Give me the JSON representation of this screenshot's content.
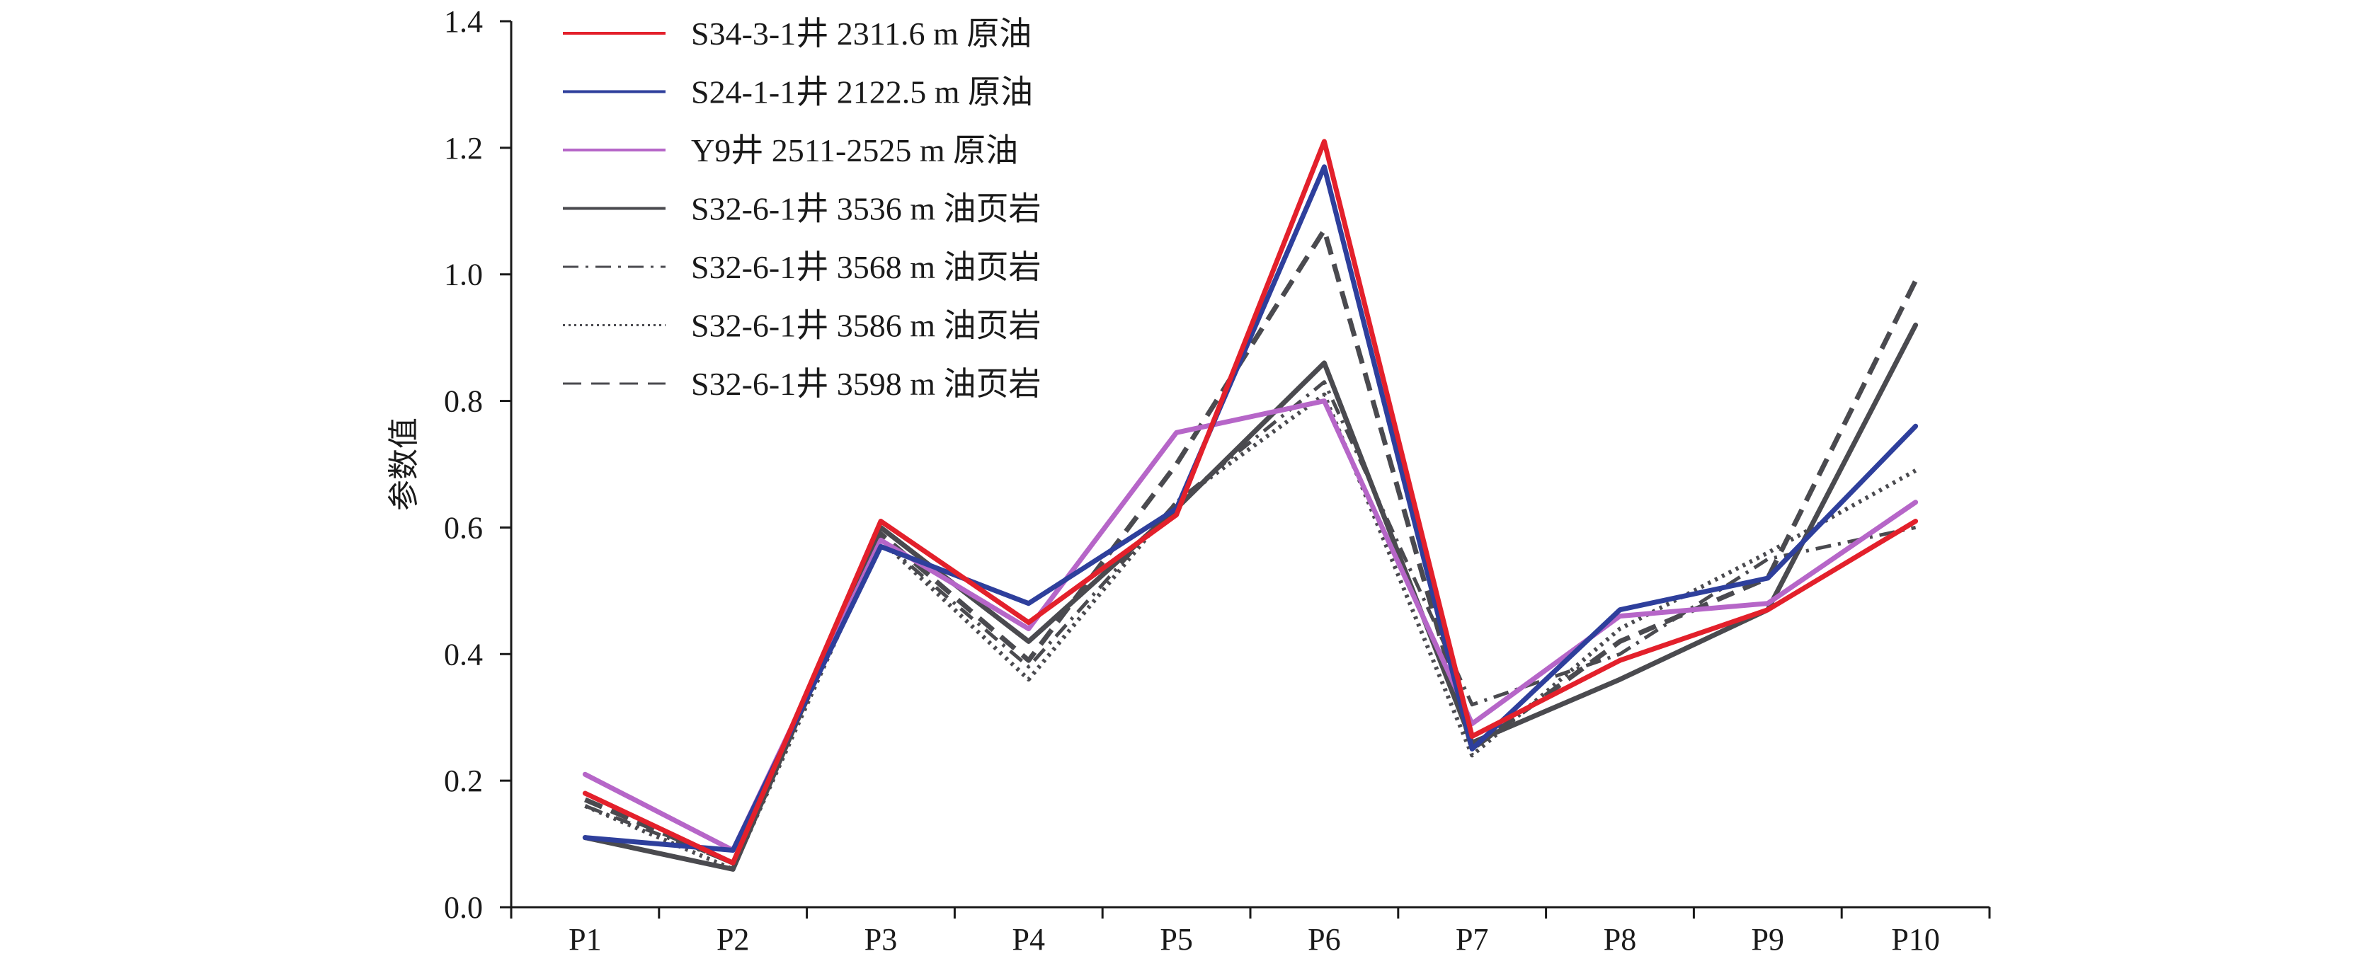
{
  "chart_data": {
    "type": "line",
    "xlabel": "",
    "ylabel": "参数值",
    "categories": [
      "P1",
      "P2",
      "P3",
      "P4",
      "P5",
      "P6",
      "P7",
      "P8",
      "P9",
      "P10"
    ],
    "ylim": [
      0,
      1.4
    ],
    "yticks": [
      0.0,
      0.2,
      0.4,
      0.6,
      0.8,
      1.0,
      1.2,
      1.4
    ],
    "ytick_labels": [
      "0.0",
      "0.2",
      "0.4",
      "0.6",
      "0.8",
      "1.0",
      "1.2",
      "1.4"
    ],
    "legend_position": "top-left",
    "grid": false,
    "series": [
      {
        "name": "S34-3-1井 2311.6 m 原油",
        "color": "#e3202b",
        "dash": "solid",
        "values": [
          0.18,
          0.07,
          0.61,
          0.45,
          0.62,
          1.21,
          0.27,
          0.39,
          0.47,
          0.61
        ]
      },
      {
        "name": "S24-1-1井 2122.5 m 原油",
        "color": "#2e3f9c",
        "dash": "solid",
        "values": [
          0.11,
          0.09,
          0.57,
          0.48,
          0.63,
          1.17,
          0.25,
          0.47,
          0.52,
          0.76
        ]
      },
      {
        "name": "Y9井 2511-2525 m 原油",
        "color": "#b666c8",
        "dash": "solid",
        "values": [
          0.21,
          0.09,
          0.58,
          0.44,
          0.75,
          0.8,
          0.29,
          0.46,
          0.48,
          0.64
        ]
      },
      {
        "name": "S32-6-1井 3536 m 油页岩",
        "color": "#4a4a4f",
        "dash": "solid",
        "values": [
          0.11,
          0.06,
          0.6,
          0.42,
          0.63,
          0.86,
          0.26,
          0.36,
          0.47,
          0.92
        ]
      },
      {
        "name": "S32-6-1井 3568 m 油页岩",
        "color": "#4a4a4f",
        "dash": "dashdot",
        "values": [
          0.16,
          0.07,
          0.58,
          0.38,
          0.64,
          0.83,
          0.32,
          0.4,
          0.55,
          0.6
        ]
      },
      {
        "name": "S32-6-1井 3586 m 油页岩",
        "color": "#4a4a4f",
        "dash": "dotted",
        "values": [
          0.16,
          0.06,
          0.58,
          0.36,
          0.64,
          0.81,
          0.24,
          0.44,
          0.56,
          0.69
        ]
      },
      {
        "name": "S32-6-1井 3598 m 油页岩",
        "color": "#4a4a4f",
        "dash": "dashed",
        "values": [
          0.17,
          0.07,
          0.59,
          0.39,
          0.7,
          1.07,
          0.25,
          0.42,
          0.52,
          0.99
        ]
      }
    ]
  }
}
